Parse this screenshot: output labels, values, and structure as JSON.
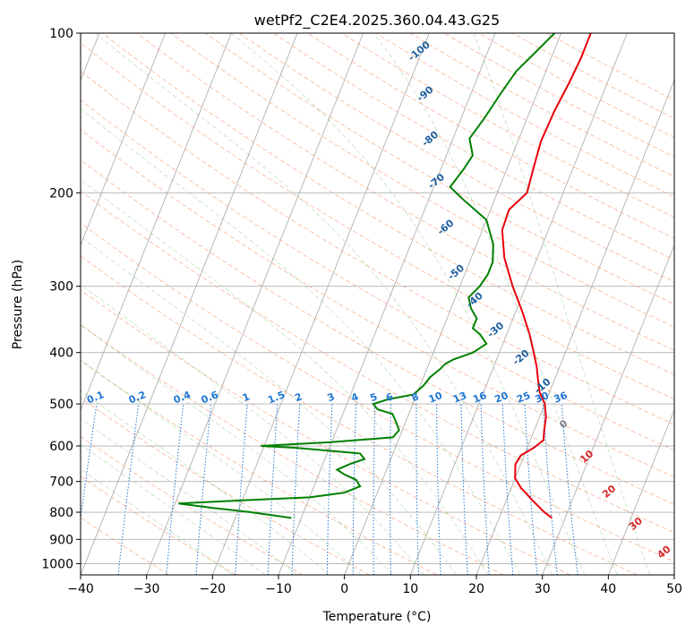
{
  "chart_data": {
    "type": "line",
    "title": "wetPf2_C2E4.2025.360.04.43.G25",
    "xlabel": "Temperature (°C)",
    "ylabel": "Pressure (hPa)",
    "xlim": [
      -40,
      50
    ],
    "ylim": [
      1050,
      100
    ],
    "y_scale": "log",
    "grid": true,
    "x_ticks": [
      "−40",
      "−30",
      "−20",
      "−10",
      "0",
      "10",
      "20",
      "30",
      "40",
      "50"
    ],
    "y_ticks": [
      {
        "value": 100,
        "label": "100"
      },
      {
        "value": 200,
        "label": "200"
      },
      {
        "value": 300,
        "label": "300"
      },
      {
        "value": 400,
        "label": "400"
      },
      {
        "value": 500,
        "label": "500"
      },
      {
        "value": 600,
        "label": "600"
      },
      {
        "value": 700,
        "label": "700"
      },
      {
        "value": 800,
        "label": "800"
      },
      {
        "value": 900,
        "label": "900"
      },
      {
        "value": 1000,
        "label": "1000"
      }
    ],
    "series": [
      {
        "color": "#e8000b",
        "points": [
          [
            28,
            820
          ],
          [
            26.5,
            800
          ],
          [
            24,
            760
          ],
          [
            21.5,
            720
          ],
          [
            20,
            690
          ],
          [
            19.2,
            650
          ],
          [
            19.5,
            625
          ],
          [
            21,
            605
          ],
          [
            22,
            585
          ],
          [
            21.5,
            560
          ],
          [
            21,
            530
          ],
          [
            20,
            500
          ],
          [
            18.5,
            475
          ],
          [
            17.5,
            450
          ],
          [
            16.5,
            425
          ],
          [
            15.2,
            400
          ],
          [
            13.5,
            370
          ],
          [
            11,
            335
          ],
          [
            8,
            300
          ],
          [
            5,
            265
          ],
          [
            3,
            235
          ],
          [
            2.8,
            215
          ],
          [
            4.5,
            200
          ],
          [
            4,
            180
          ],
          [
            3.5,
            160
          ],
          [
            3.7,
            140
          ],
          [
            4.2,
            125
          ],
          [
            4.5,
            112
          ],
          [
            4.5,
            100
          ]
        ]
      },
      {
        "color": "#008000",
        "points": [
          [
            -11.5,
            820
          ],
          [
            -18,
            800
          ],
          [
            -24,
            785
          ],
          [
            -29.5,
            770
          ],
          [
            -20,
            760
          ],
          [
            -10,
            750
          ],
          [
            -5,
            735
          ],
          [
            -3,
            715
          ],
          [
            -4,
            695
          ],
          [
            -6,
            680
          ],
          [
            -7.5,
            665
          ],
          [
            -6,
            650
          ],
          [
            -4,
            635
          ],
          [
            -5,
            620
          ],
          [
            -15,
            605
          ],
          [
            -20.5,
            600
          ],
          [
            -10,
            590
          ],
          [
            -1,
            578
          ],
          [
            -0.5,
            560
          ],
          [
            -1.5,
            540
          ],
          [
            -2.5,
            522
          ],
          [
            -5,
            512
          ],
          [
            -6,
            500
          ],
          [
            -4,
            490
          ],
          [
            -0.5,
            480
          ],
          [
            0.5,
            462
          ],
          [
            1,
            445
          ],
          [
            2,
            430
          ],
          [
            2.5,
            420
          ],
          [
            3.5,
            412
          ],
          [
            6,
            400
          ],
          [
            7.5,
            385
          ],
          [
            6,
            370
          ],
          [
            4.5,
            360
          ],
          [
            4.5,
            345
          ],
          [
            3,
            330
          ],
          [
            2,
            315
          ],
          [
            3,
            300
          ],
          [
            3.5,
            285
          ],
          [
            3.5,
            270
          ],
          [
            2.5,
            250
          ],
          [
            0,
            225
          ],
          [
            -5,
            205
          ],
          [
            -7.5,
            195
          ],
          [
            -6.5,
            180
          ],
          [
            -6,
            170
          ],
          [
            -7.5,
            158
          ],
          [
            -6.5,
            145
          ],
          [
            -5.5,
            130
          ],
          [
            -4.5,
            118
          ],
          [
            -3,
            110
          ],
          [
            -1,
            100
          ]
        ]
      }
    ],
    "mixing_ratio_labels": [
      "0.1",
      "0.2",
      "0.4",
      "0.6",
      "1",
      "1.5",
      "2",
      "3",
      "4",
      "5",
      "6",
      "8",
      "10",
      "13",
      "16",
      "20",
      "25",
      "30",
      "36"
    ],
    "mixing_ratio_values": [
      0.1,
      0.2,
      0.4,
      0.6,
      1,
      1.5,
      2,
      3,
      4,
      5,
      6,
      8,
      10,
      13,
      16,
      20,
      25,
      30,
      36
    ],
    "dry_adiabat_labels": [
      {
        "text": "-100",
        "t": -20.5,
        "p": 108
      },
      {
        "text": "-90",
        "t": -17,
        "p": 130
      },
      {
        "text": "-80",
        "t": -13.5,
        "p": 158
      },
      {
        "text": "-70",
        "t": -10,
        "p": 190
      },
      {
        "text": "-60",
        "t": -5.8,
        "p": 232
      },
      {
        "text": "-50",
        "t": -1.5,
        "p": 282
      },
      {
        "text": "-40",
        "t": 3,
        "p": 318
      },
      {
        "text": "-30",
        "t": 8,
        "p": 362
      },
      {
        "text": "-20",
        "t": 13.5,
        "p": 408
      },
      {
        "text": "-10",
        "t": 18.5,
        "p": 462
      }
    ],
    "moist_adiabat_labels": [
      {
        "text": "0",
        "t": 24,
        "p": 545
      },
      {
        "text": "10",
        "t": 29.5,
        "p": 628
      },
      {
        "text": "20",
        "t": 35,
        "p": 730
      },
      {
        "text": "30",
        "t": 41,
        "p": 840
      },
      {
        "text": "40",
        "t": 47,
        "p": 950
      }
    ]
  }
}
